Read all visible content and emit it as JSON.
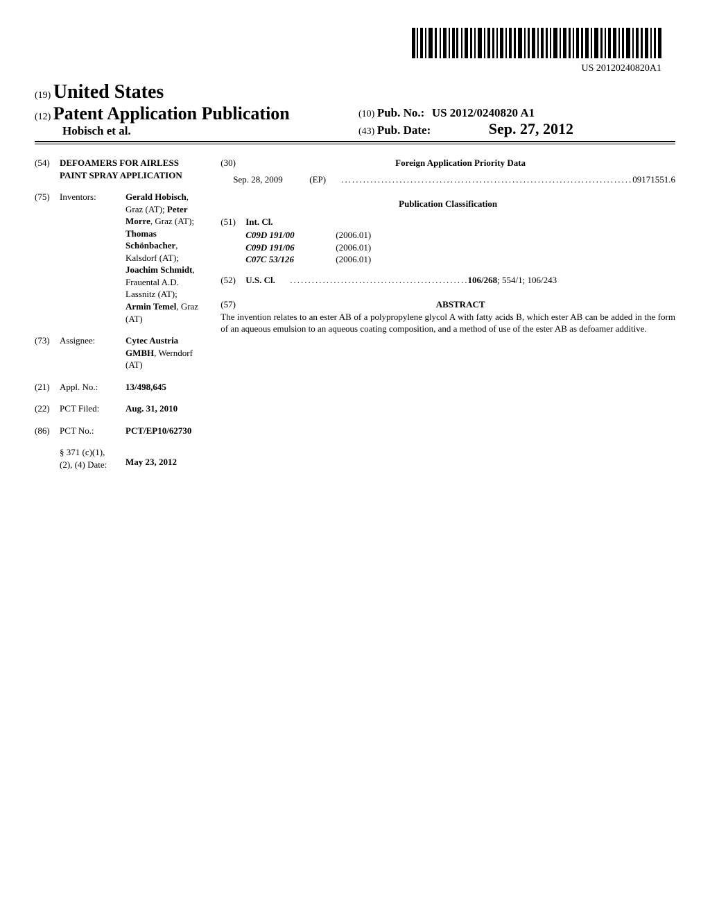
{
  "barcode_text": "US 20120240820A1",
  "header": {
    "prefix19": "(19)",
    "country": "United States",
    "prefix12": "(12)",
    "pub_type": "Patent Application Publication",
    "authors": "Hobisch et al.",
    "prefix10": "(10)",
    "pub_no_label": "Pub. No.:",
    "pub_no": "US 2012/0240820 A1",
    "prefix43": "(43)",
    "pub_date_label": "Pub. Date:",
    "pub_date": "Sep. 27, 2012"
  },
  "left": {
    "title_num": "(54)",
    "title": "DEFOAMERS FOR AIRLESS PAINT SPRAY APPLICATION",
    "inventors_num": "(75)",
    "inventors_label": "Inventors:",
    "inventors_value": "<b>Gerald Hobisch</b>, Graz (AT); <b>Peter Morre</b>, Graz (AT); <b>Thomas Schönbacher</b>, Kalsdorf (AT); <b>Joachim Schmidt</b>, Frauental A.D. Lassnitz (AT); <b>Armin Temel</b>, Graz (AT)",
    "assignee_num": "(73)",
    "assignee_label": "Assignee:",
    "assignee_value": "<b>Cytec Austria GMBH</b>, Werndorf (AT)",
    "appl_num": "(21)",
    "appl_label": "Appl. No.:",
    "appl_value": "13/498,645",
    "pct_filed_num": "(22)",
    "pct_filed_label": "PCT Filed:",
    "pct_filed_value": "Aug. 31, 2010",
    "pct_no_num": "(86)",
    "pct_no_label": "PCT No.:",
    "pct_no_value": "PCT/EP10/62730",
    "s371_label": "§ 371 (c)(1),\n(2), (4) Date:",
    "s371_value": "May 23, 2012"
  },
  "right": {
    "foreign_num": "(30)",
    "foreign_heading": "Foreign Application Priority Data",
    "priority_date": "Sep. 28, 2009",
    "priority_country": "(EP)",
    "priority_value": "09171551.6",
    "pub_class_heading": "Publication Classification",
    "intcl_num": "(51)",
    "intcl_label": "Int. Cl.",
    "intcl": [
      {
        "code": "C09D 191/00",
        "date": "(2006.01)"
      },
      {
        "code": "C09D 191/06",
        "date": "(2006.01)"
      },
      {
        "code": "C07C 53/126",
        "date": "(2006.01)"
      }
    ],
    "uscl_num": "(52)",
    "uscl_label": "U.S. Cl.",
    "uscl_values": "106/268; 554/1; 106/243",
    "uscl_bold": "106/268",
    "abstract_num": "(57)",
    "abstract_heading": "ABSTRACT",
    "abstract_body": "The invention relates to an ester AB of a polypropylene glycol A with fatty acids B, which ester AB can be added in the form of an aqueous emulsion to an aqueous coating composition, and a method of use of the ester AB as defoamer additive."
  }
}
